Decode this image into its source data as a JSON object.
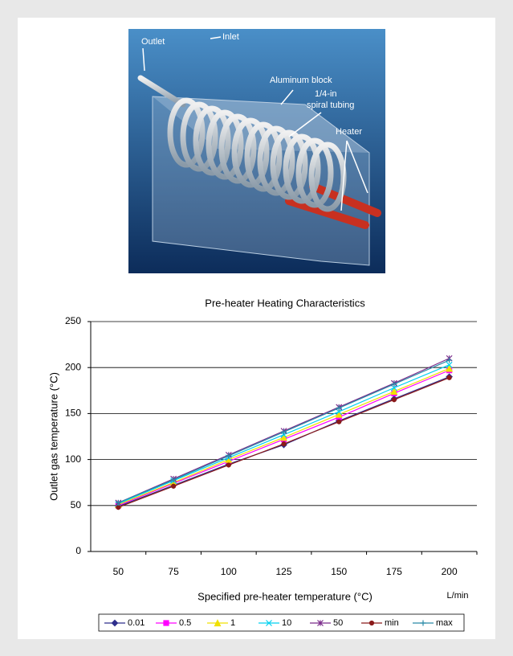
{
  "illustration": {
    "labels": {
      "outlet": "Outlet",
      "inlet": "Inlet",
      "block": "Aluminum block",
      "tubing_1": "1/4-in",
      "tubing_2": "spiral tubing",
      "heater": "Heater"
    }
  },
  "chart_data": {
    "type": "line",
    "title": "Pre-heater Heating Characteristics",
    "x_label": "Specified pre-heater temperature (°C)",
    "x_unit": "L/min",
    "y_label": "Outlet gas temperature (°C)",
    "categories": [
      "50",
      "75",
      "100",
      "125",
      "150",
      "175",
      "200"
    ],
    "ylim": [
      0,
      250
    ],
    "yticks": [
      0,
      50,
      100,
      150,
      200,
      250
    ],
    "grid": true,
    "series": [
      {
        "name": "0.01",
        "color": "#2e2e8c",
        "marker": "diamond",
        "values": [
          49,
          72,
          95,
          116,
          142,
          166,
          190
        ]
      },
      {
        "name": "0.5",
        "color": "#ff00ff",
        "marker": "square",
        "values": [
          50,
          74,
          98,
          122,
          146,
          172,
          197
        ]
      },
      {
        "name": "1",
        "color": "#f0e000",
        "marker": "triangle",
        "values": [
          51,
          75,
          100,
          124,
          149,
          174,
          199
        ]
      },
      {
        "name": "10",
        "color": "#00d0f0",
        "marker": "x",
        "values": [
          52,
          77,
          102,
          127,
          152,
          178,
          203
        ]
      },
      {
        "name": "50",
        "color": "#7a2a8a",
        "marker": "star",
        "values": [
          53,
          79,
          105,
          131,
          157,
          183,
          210
        ]
      },
      {
        "name": "min",
        "color": "#8b1a1a",
        "marker": "circle",
        "values": [
          48,
          71,
          94,
          117,
          141,
          165,
          189
        ]
      },
      {
        "name": "max",
        "color": "#2a8aa8",
        "marker": "plus",
        "values": [
          53,
          78,
          104,
          130,
          156,
          182,
          208
        ]
      }
    ]
  }
}
